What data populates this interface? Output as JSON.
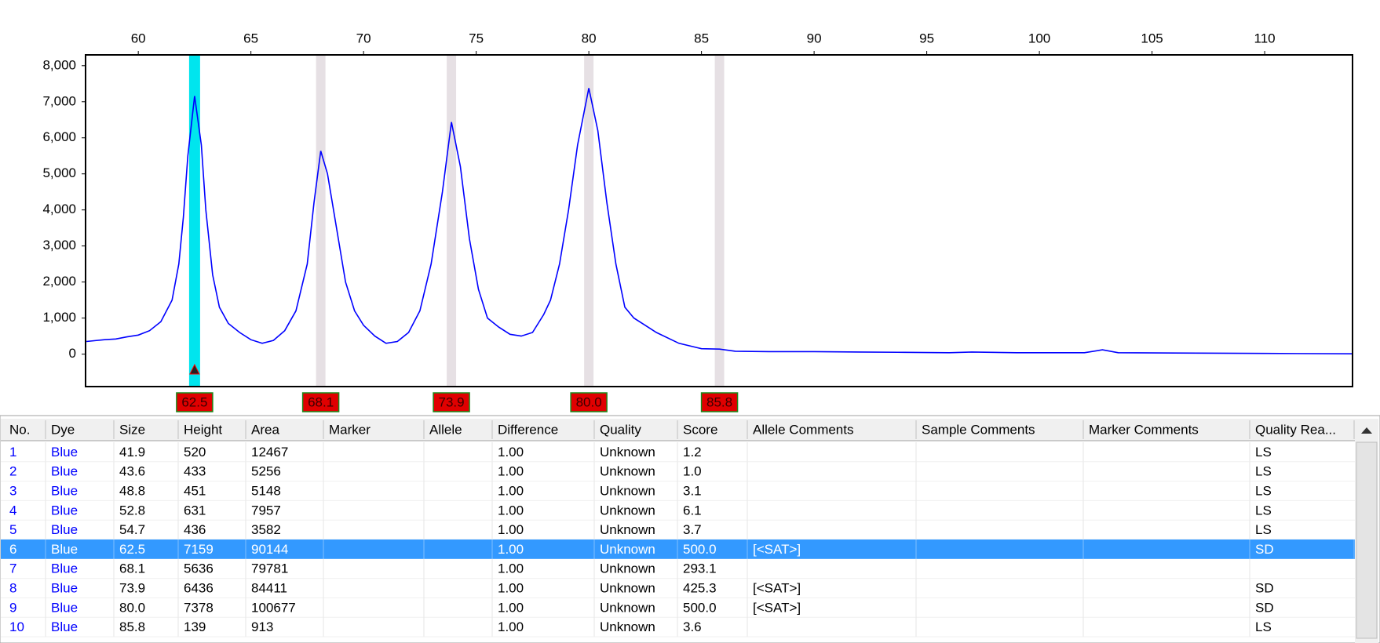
{
  "chart_data": {
    "type": "line",
    "xlim": [
      57.66,
      113.9
    ],
    "xticks": [
      60,
      65,
      70,
      75,
      80,
      85,
      90,
      95,
      100,
      105,
      110
    ],
    "ylim": [
      -900,
      8300
    ],
    "yticks": [
      0,
      {
        "value": 1000,
        "label": "1,000"
      },
      {
        "value": 2000,
        "label": "2,000"
      },
      {
        "value": 3000,
        "label": "3,000"
      },
      {
        "value": 4000,
        "label": "4,000"
      },
      {
        "value": 5000,
        "label": "5,000"
      },
      {
        "value": 6000,
        "label": "6,000"
      },
      {
        "value": 7000,
        "label": "7,000"
      },
      {
        "value": 8000,
        "label": "8,000"
      }
    ],
    "x": [
      57.7,
      58.5,
      59,
      59.5,
      60,
      60.5,
      61,
      61.5,
      61.8,
      62,
      62.2,
      62.5,
      62.8,
      63,
      63.3,
      63.6,
      64,
      64.5,
      65,
      65.5,
      66,
      66.5,
      67,
      67.5,
      67.8,
      68.1,
      68.4,
      68.8,
      69.2,
      69.6,
      70,
      70.5,
      71,
      71.5,
      72,
      72.5,
      73,
      73.5,
      73.9,
      74.3,
      74.7,
      75.1,
      75.5,
      76,
      76.5,
      77,
      77.5,
      78,
      78.3,
      78.7,
      79.1,
      79.5,
      80,
      80.4,
      80.8,
      81.2,
      81.6,
      82,
      82.5,
      83,
      84,
      85,
      85.8,
      86.5,
      88,
      90,
      92,
      94,
      96,
      97,
      99,
      102,
      102.8,
      103.5,
      106,
      110,
      113.9
    ],
    "series": [
      {
        "color": "#0000ff",
        "values": [
          350,
          400,
          420,
          480,
          530,
          650,
          900,
          1500,
          2500,
          3800,
          5500,
          7159,
          5800,
          4000,
          2200,
          1300,
          850,
          600,
          400,
          300,
          380,
          650,
          1200,
          2500,
          4200,
          5636,
          5000,
          3500,
          2000,
          1200,
          800,
          500,
          300,
          350,
          600,
          1200,
          2500,
          4500,
          6436,
          5200,
          3200,
          1800,
          1000,
          750,
          550,
          500,
          600,
          1100,
          1500,
          2500,
          4000,
          5800,
          7378,
          6200,
          4200,
          2500,
          1300,
          1000,
          800,
          600,
          300,
          150,
          139,
          80,
          70,
          70,
          60,
          50,
          40,
          60,
          40,
          40,
          120,
          40,
          30,
          20,
          10
        ]
      }
    ],
    "peaks": [
      62.5,
      68.1,
      73.9,
      {
        "value": 80,
        "label": "80.0"
      },
      85.8
    ],
    "selected_peak": 0
  },
  "table": {
    "columns": [
      "No.",
      "Dye",
      "Size",
      "Height",
      "Area",
      "Marker",
      "Allele",
      "Difference",
      "Quality",
      "Score",
      "Allele Comments",
      "Sample Comments",
      "Marker Comments",
      "Quality Rea..."
    ],
    "rows": [
      [
        "1",
        "Blue",
        "41.9",
        "520",
        "12467",
        null,
        null,
        "1.00",
        "Unknown",
        "1.2",
        null,
        null,
        null,
        "LS"
      ],
      [
        "2",
        "Blue",
        "43.6",
        "433",
        "5256",
        null,
        null,
        "1.00",
        "Unknown",
        "1.0",
        null,
        null,
        null,
        "LS"
      ],
      [
        "3",
        "Blue",
        "48.8",
        "451",
        "5148",
        null,
        null,
        "1.00",
        "Unknown",
        "3.1",
        null,
        null,
        null,
        "LS"
      ],
      [
        "4",
        "Blue",
        "52.8",
        "631",
        "7957",
        null,
        null,
        "1.00",
        "Unknown",
        "6.1",
        null,
        null,
        null,
        "LS"
      ],
      [
        "5",
        "Blue",
        "54.7",
        "436",
        "3582",
        null,
        null,
        "1.00",
        "Unknown",
        "3.7",
        null,
        null,
        null,
        "LS"
      ],
      [
        "6",
        "Blue",
        "62.5",
        "7159",
        "90144",
        null,
        null,
        "1.00",
        "Unknown",
        "500.0",
        "[<SAT>]",
        null,
        null,
        "SD"
      ],
      [
        "7",
        "Blue",
        "68.1",
        "5636",
        "79781",
        null,
        null,
        "1.00",
        "Unknown",
        "293.1",
        null,
        null,
        null,
        null
      ],
      [
        "8",
        "Blue",
        "73.9",
        "6436",
        "84411",
        null,
        null,
        "1.00",
        "Unknown",
        "425.3",
        "[<SAT>]",
        null,
        null,
        "SD"
      ],
      [
        "9",
        "Blue",
        "80.0",
        "7378",
        "100677",
        null,
        null,
        "1.00",
        "Unknown",
        "500.0",
        "[<SAT>]",
        null,
        null,
        "SD"
      ],
      [
        "10",
        "Blue",
        "85.8",
        "139",
        "913",
        null,
        null,
        "1.00",
        "Unknown",
        "3.6",
        null,
        null,
        null,
        "LS"
      ]
    ],
    "selected_row": 5
  }
}
